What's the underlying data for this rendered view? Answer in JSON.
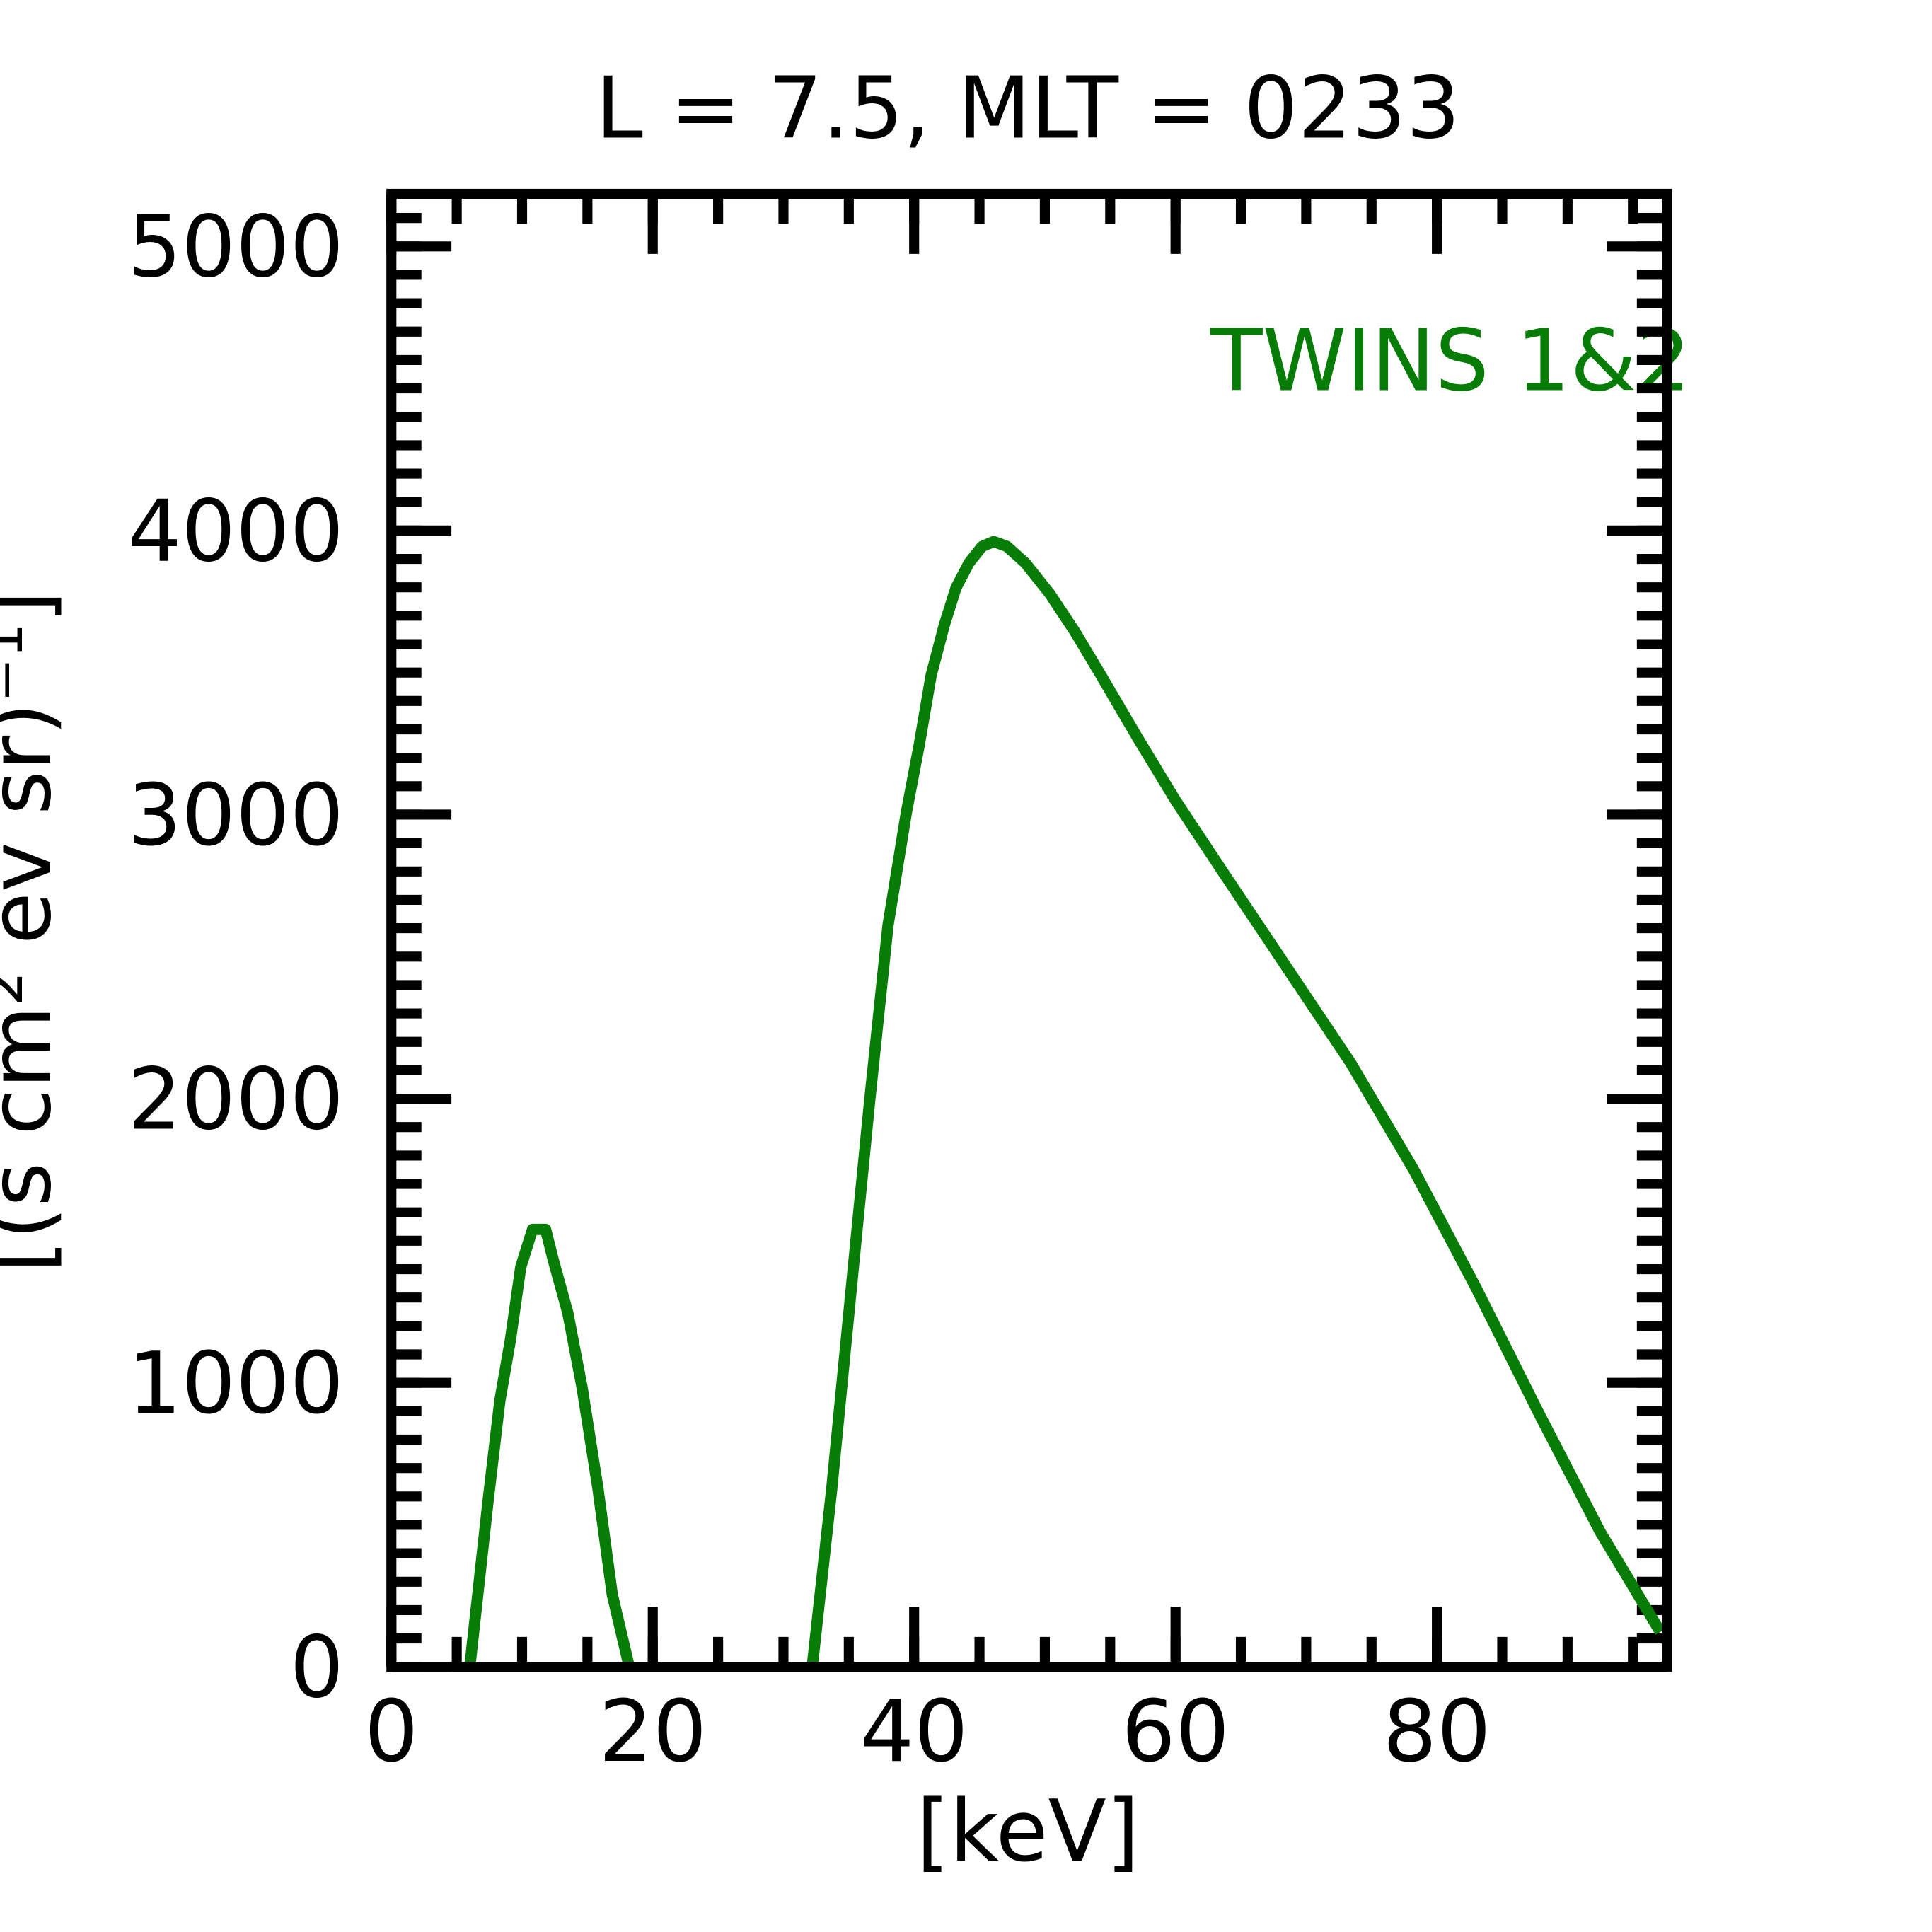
{
  "chart_data": {
    "type": "line",
    "title": "L =  7.5, MLT = 0233",
    "xlabel": "[keV]",
    "ylabel": "[(s cm² ev sr)⁻¹]",
    "annotation": "TWINS 1&2",
    "xlim": [
      0,
      97.6
    ],
    "ylim": [
      0,
      5185
    ],
    "xticks": [
      0,
      20,
      40,
      60,
      80
    ],
    "yticks": [
      0,
      1000,
      2000,
      3000,
      4000,
      5000
    ],
    "xminor_step": 5,
    "yminor_step": 100,
    "series": [
      {
        "name": "TWINS 1&2",
        "color": "#077d07",
        "x": [
          6.0,
          7.4,
          8.3,
          9.1,
          9.9,
          10.8,
          11.8,
          12.4,
          13.5,
          14.6,
          15.8,
          16.9,
          18.2,
          null,
          32.2,
          33.7,
          35.1,
          36.6,
          38.0,
          39.4,
          40.4,
          41.3,
          42.3,
          43.2,
          44.2,
          45.2,
          46.1,
          47.1,
          48.5,
          50.4,
          52.3,
          54.3,
          57.1,
          60.0,
          63.8,
          68.6,
          73.4,
          78.2,
          83.0,
          87.8,
          92.5,
          97.1
        ],
        "values": [
          0,
          585,
          937,
          1149,
          1408,
          1540,
          1540,
          1430,
          1246,
          981,
          629,
          255,
          0,
          null,
          0,
          629,
          1290,
          1994,
          2610,
          3006,
          3248,
          3490,
          3666,
          3798,
          3886,
          3944,
          3961,
          3944,
          3886,
          3776,
          3644,
          3490,
          3270,
          3050,
          2786,
          2456,
          2126,
          1752,
          1334,
          893,
          475,
          123
        ]
      }
    ]
  }
}
